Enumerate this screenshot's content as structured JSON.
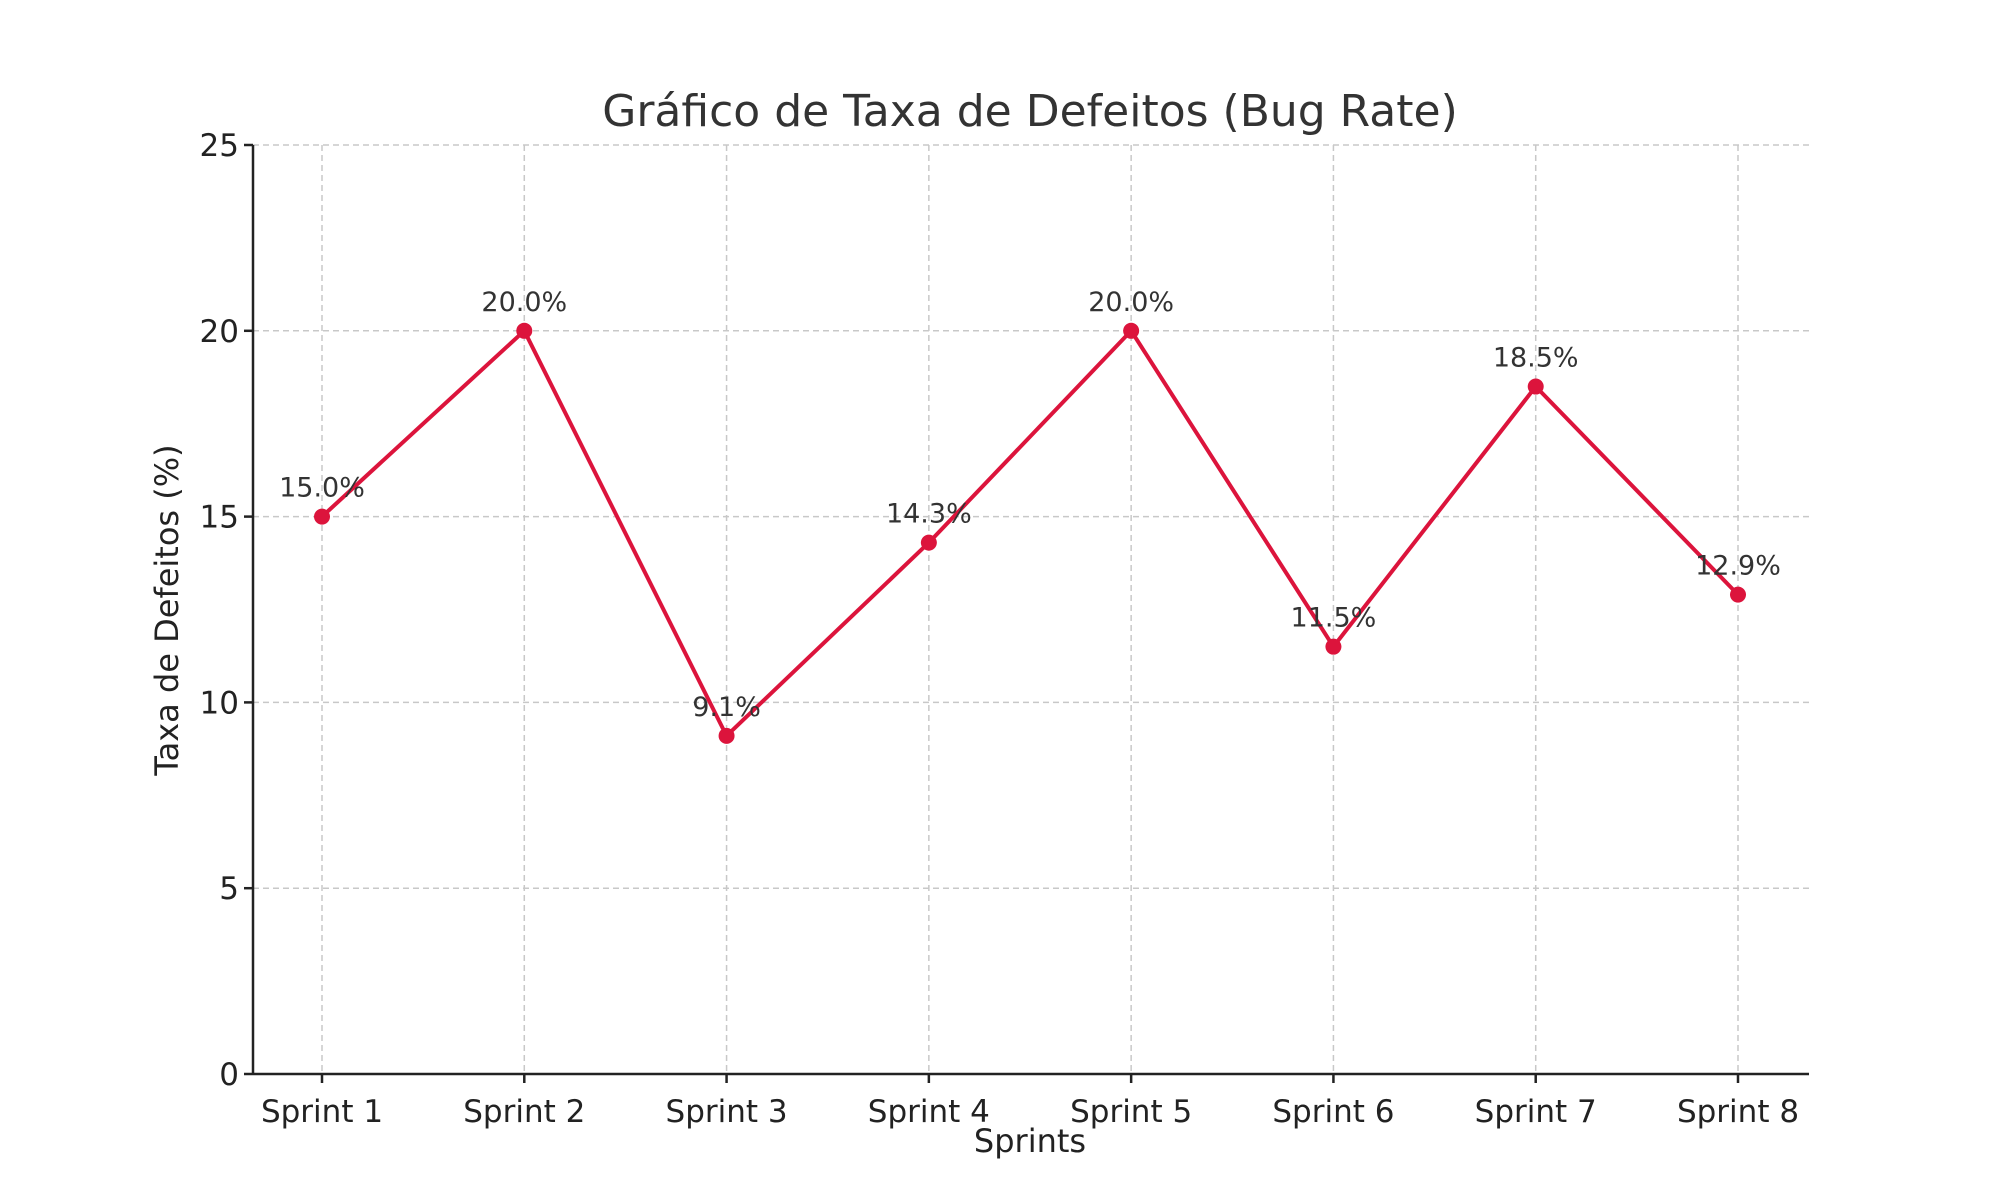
{
  "chart_data": {
    "type": "line",
    "title": "Gráfico de Taxa de Defeitos (Bug Rate)",
    "xlabel": "Sprints",
    "ylabel": "Taxa de Defeitos (%)",
    "categories": [
      "Sprint 1",
      "Sprint 2",
      "Sprint 3",
      "Sprint 4",
      "Sprint 5",
      "Sprint 6",
      "Sprint 7",
      "Sprint 8"
    ],
    "values": [
      15.0,
      20.0,
      9.1,
      14.3,
      20.0,
      11.5,
      18.5,
      12.9
    ],
    "data_labels": [
      "15.0%",
      "20.0%",
      "9.1%",
      "14.3%",
      "20.0%",
      "11.5%",
      "18.5%",
      "12.9%"
    ],
    "ylim": [
      0,
      25
    ],
    "yticks": [
      0,
      5,
      10,
      15,
      20,
      25
    ],
    "grid": true,
    "color": "#dc143c"
  }
}
